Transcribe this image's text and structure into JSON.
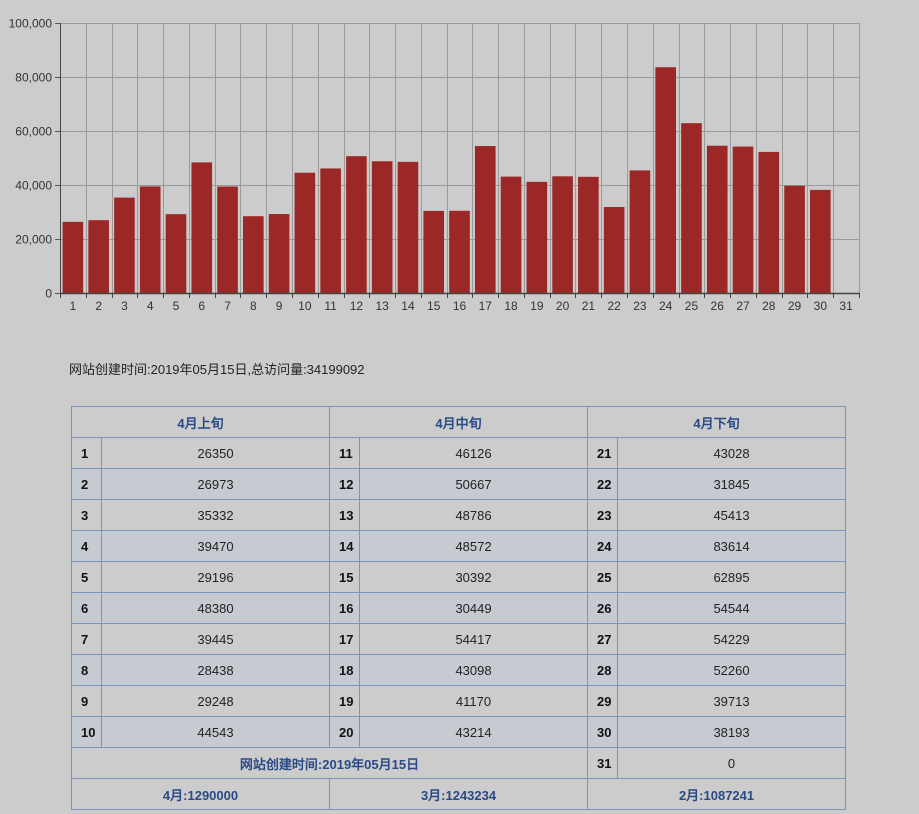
{
  "chart_data": {
    "type": "bar",
    "categories": [
      "1",
      "2",
      "3",
      "4",
      "5",
      "6",
      "7",
      "8",
      "9",
      "10",
      "11",
      "12",
      "13",
      "14",
      "15",
      "16",
      "17",
      "18",
      "19",
      "20",
      "21",
      "22",
      "23",
      "24",
      "25",
      "26",
      "27",
      "28",
      "29",
      "30",
      "31"
    ],
    "values": [
      26350,
      26973,
      35332,
      39470,
      29196,
      48380,
      39445,
      28438,
      29248,
      44543,
      46126,
      50667,
      48786,
      48572,
      30392,
      30449,
      54417,
      43098,
      41170,
      43214,
      43028,
      31845,
      45413,
      83614,
      62895,
      54544,
      54229,
      52260,
      39713,
      38193,
      0
    ],
    "ylim": [
      0,
      100000
    ],
    "yticks": [
      0,
      20000,
      40000,
      60000,
      80000,
      100000
    ],
    "ytick_labels": [
      "0",
      "20,000",
      "40,000",
      "60,000",
      "80,000",
      "100,000"
    ],
    "grid": true,
    "bar_color": "#9b2826"
  },
  "info_text": "网站创建时间:2019年05月15日,总访问量:34199092",
  "table": {
    "headers": [
      "4月上旬",
      "4月中旬",
      "4月下旬"
    ],
    "rows": [
      [
        {
          "day": "1",
          "value": "26350"
        },
        {
          "day": "11",
          "value": "46126"
        },
        {
          "day": "21",
          "value": "43028"
        }
      ],
      [
        {
          "day": "2",
          "value": "26973"
        },
        {
          "day": "12",
          "value": "50667"
        },
        {
          "day": "22",
          "value": "31845"
        }
      ],
      [
        {
          "day": "3",
          "value": "35332"
        },
        {
          "day": "13",
          "value": "48786"
        },
        {
          "day": "23",
          "value": "45413"
        }
      ],
      [
        {
          "day": "4",
          "value": "39470"
        },
        {
          "day": "14",
          "value": "48572"
        },
        {
          "day": "24",
          "value": "83614"
        }
      ],
      [
        {
          "day": "5",
          "value": "29196"
        },
        {
          "day": "15",
          "value": "30392"
        },
        {
          "day": "25",
          "value": "62895"
        }
      ],
      [
        {
          "day": "6",
          "value": "48380"
        },
        {
          "day": "16",
          "value": "30449"
        },
        {
          "day": "26",
          "value": "54544"
        }
      ],
      [
        {
          "day": "7",
          "value": "39445"
        },
        {
          "day": "17",
          "value": "54417"
        },
        {
          "day": "27",
          "value": "54229"
        }
      ],
      [
        {
          "day": "8",
          "value": "28438"
        },
        {
          "day": "18",
          "value": "43098"
        },
        {
          "day": "28",
          "value": "52260"
        }
      ],
      [
        {
          "day": "9",
          "value": "29248"
        },
        {
          "day": "19",
          "value": "41170"
        },
        {
          "day": "29",
          "value": "39713"
        }
      ],
      [
        {
          "day": "10",
          "value": "44543"
        },
        {
          "day": "20",
          "value": "43214"
        },
        {
          "day": "30",
          "value": "38193"
        }
      ]
    ],
    "created_label": "网站创建时间:2019年05月15日",
    "last_day": {
      "day": "31",
      "value": "0"
    },
    "month_totals": [
      "4月:1290000",
      "3月:1243234",
      "2月:1087241"
    ]
  }
}
